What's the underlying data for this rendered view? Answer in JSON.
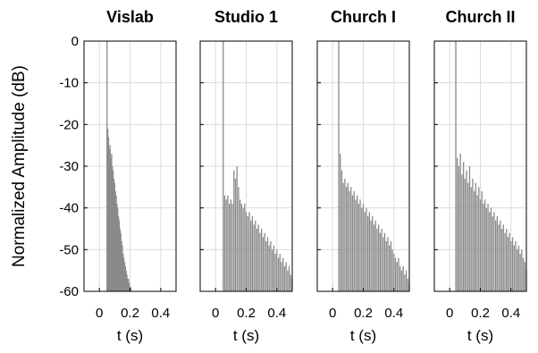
{
  "figure": {
    "ylabel": "Normalized Amplitude (dB)"
  },
  "chart_data": [
    {
      "type": "bar",
      "title": "Vislab",
      "xlabel": "t (s)",
      "xlim": [
        -0.1,
        0.5
      ],
      "ylim": [
        -60,
        0
      ],
      "xticks": [
        0,
        0.2,
        0.4
      ],
      "xtick_labels": [
        "0",
        "0.2",
        "0.4"
      ],
      "yticks": [
        0,
        -10,
        -20,
        -30,
        -40,
        -50,
        -60
      ],
      "ytick_labels": [
        "0",
        "-10",
        "-20",
        "-30",
        "-40",
        "-50",
        "-60"
      ],
      "grid": true,
      "x": [
        0.05,
        0.055,
        0.06,
        0.065,
        0.07,
        0.075,
        0.08,
        0.085,
        0.09,
        0.095,
        0.1,
        0.105,
        0.11,
        0.115,
        0.12,
        0.125,
        0.13,
        0.135,
        0.14,
        0.145,
        0.15,
        0.155,
        0.16,
        0.165,
        0.17,
        0.175,
        0.18,
        0.185,
        0.19,
        0.195,
        0.2,
        0.205,
        0.21
      ],
      "values": [
        0,
        -21,
        -23,
        -26,
        -25,
        -28,
        -27,
        -30,
        -31,
        -33,
        -34,
        -36,
        -37,
        -39,
        -40,
        -42,
        -43,
        -45,
        -46,
        -48,
        -49,
        -51,
        -52,
        -53,
        -54,
        -55,
        -56,
        -57,
        -57,
        -58,
        -59,
        -59,
        -60
      ]
    },
    {
      "type": "bar",
      "title": "Studio 1",
      "xlabel": "t (s)",
      "xlim": [
        -0.1,
        0.5
      ],
      "ylim": [
        -60,
        0
      ],
      "xticks": [
        0,
        0.2,
        0.4
      ],
      "xtick_labels": [
        "0",
        "0.2",
        "0.4"
      ],
      "yticks": [
        0,
        -10,
        -20,
        -30,
        -40,
        -50,
        -60
      ],
      "ytick_labels": [
        "",
        "",
        "",
        "",
        "",
        "",
        ""
      ],
      "grid": true,
      "x": [
        0.05,
        0.06,
        0.07,
        0.08,
        0.09,
        0.1,
        0.11,
        0.12,
        0.13,
        0.14,
        0.15,
        0.16,
        0.17,
        0.18,
        0.19,
        0.2,
        0.21,
        0.22,
        0.23,
        0.24,
        0.25,
        0.26,
        0.27,
        0.28,
        0.29,
        0.3,
        0.31,
        0.32,
        0.33,
        0.34,
        0.35,
        0.36,
        0.37,
        0.38,
        0.39,
        0.4,
        0.41,
        0.42,
        0.43,
        0.44,
        0.45,
        0.46,
        0.47,
        0.48,
        0.49,
        0.5
      ],
      "values": [
        0,
        -37,
        -38,
        -37,
        -39,
        -38,
        -39,
        -31,
        -33,
        -30,
        -35,
        -38,
        -39,
        -40,
        -39,
        -41,
        -42,
        -41,
        -43,
        -42,
        -44,
        -43,
        -45,
        -44,
        -46,
        -45,
        -47,
        -46,
        -48,
        -47,
        -49,
        -48,
        -50,
        -49,
        -51,
        -50,
        -52,
        -51,
        -53,
        -52,
        -54,
        -53,
        -55,
        -54,
        -56,
        -57
      ]
    },
    {
      "type": "bar",
      "title": "Church I",
      "xlabel": "t (s)",
      "xlim": [
        -0.1,
        0.5
      ],
      "ylim": [
        -60,
        0
      ],
      "xticks": [
        0,
        0.2,
        0.4
      ],
      "xtick_labels": [
        "0",
        "0.2",
        "0.4"
      ],
      "yticks": [
        0,
        -10,
        -20,
        -30,
        -40,
        -50,
        -60
      ],
      "ytick_labels": [
        "",
        "",
        "",
        "",
        "",
        "",
        ""
      ],
      "grid": true,
      "x": [
        0.04,
        0.05,
        0.06,
        0.07,
        0.08,
        0.09,
        0.1,
        0.11,
        0.12,
        0.13,
        0.14,
        0.15,
        0.16,
        0.17,
        0.18,
        0.19,
        0.2,
        0.21,
        0.22,
        0.23,
        0.24,
        0.25,
        0.26,
        0.27,
        0.28,
        0.29,
        0.3,
        0.31,
        0.32,
        0.33,
        0.34,
        0.35,
        0.36,
        0.37,
        0.38,
        0.39,
        0.4,
        0.41,
        0.42,
        0.43,
        0.44,
        0.45,
        0.46,
        0.47,
        0.48,
        0.49,
        0.5
      ],
      "values": [
        0,
        -27,
        -31,
        -34,
        -33,
        -35,
        -34,
        -36,
        -35,
        -37,
        -36,
        -38,
        -37,
        -39,
        -38,
        -40,
        -39,
        -41,
        -40,
        -42,
        -41,
        -43,
        -42,
        -44,
        -43,
        -45,
        -44,
        -46,
        -45,
        -47,
        -46,
        -48,
        -47,
        -49,
        -48,
        -50,
        -51,
        -52,
        -53,
        -52,
        -54,
        -55,
        -54,
        -56,
        -55,
        -57,
        -58
      ]
    },
    {
      "type": "bar",
      "title": "Church II",
      "xlabel": "t (s)",
      "xlim": [
        -0.1,
        0.5
      ],
      "ylim": [
        -60,
        0
      ],
      "xticks": [
        0,
        0.2,
        0.4
      ],
      "xtick_labels": [
        "0",
        "0.2",
        "0.4"
      ],
      "yticks": [
        0,
        -10,
        -20,
        -30,
        -40,
        -50,
        -60
      ],
      "ytick_labels": [
        "",
        "",
        "",
        "",
        "",
        "",
        ""
      ],
      "grid": true,
      "x": [
        0.04,
        0.05,
        0.06,
        0.07,
        0.08,
        0.09,
        0.1,
        0.11,
        0.12,
        0.13,
        0.14,
        0.15,
        0.16,
        0.17,
        0.18,
        0.19,
        0.2,
        0.21,
        0.22,
        0.23,
        0.24,
        0.25,
        0.26,
        0.27,
        0.28,
        0.29,
        0.3,
        0.31,
        0.32,
        0.33,
        0.34,
        0.35,
        0.36,
        0.37,
        0.38,
        0.39,
        0.4,
        0.41,
        0.42,
        0.43,
        0.44,
        0.45,
        0.46,
        0.47,
        0.48,
        0.49,
        0.5
      ],
      "values": [
        0,
        -28,
        -30,
        -27,
        -32,
        -29,
        -33,
        -31,
        -34,
        -30,
        -35,
        -33,
        -36,
        -34,
        -37,
        -35,
        -38,
        -36,
        -39,
        -38,
        -40,
        -39,
        -41,
        -40,
        -42,
        -41,
        -43,
        -42,
        -44,
        -43,
        -45,
        -44,
        -46,
        -45,
        -47,
        -46,
        -48,
        -47,
        -49,
        -48,
        -50,
        -49,
        -51,
        -50,
        -52,
        -53,
        -55
      ]
    }
  ]
}
